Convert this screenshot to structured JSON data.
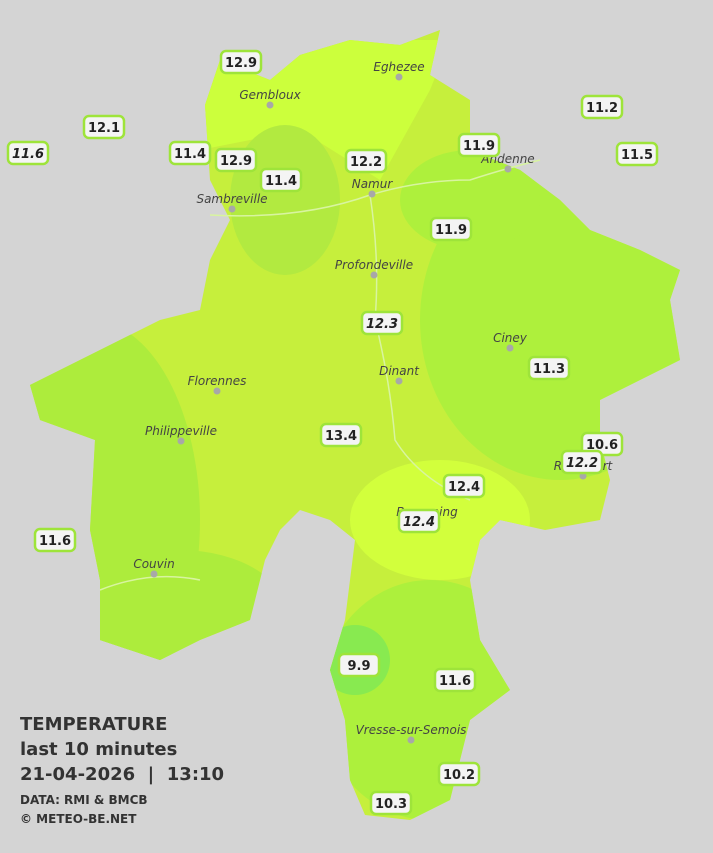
{
  "cities": [
    "Eghezee",
    "Gembloux",
    "Andenne",
    "Namur",
    "Sambreville",
    "Profondeville",
    "Ciney",
    "Dinant",
    "Florennes",
    "Philippeville",
    "Rochefort",
    "Beauraing",
    "Couvin",
    "Vresse-sur-Semois"
  ],
  "stations": [
    "12.9",
    "12.1",
    "11.6",
    "11.4",
    "12.9",
    "11.4",
    "12.2",
    "11.9",
    "11.2",
    "11.5",
    "11.9",
    "12.3",
    "11.3",
    "13.4",
    "10.6",
    "12.2",
    "12.4",
    "12.4",
    "11.6",
    "9.9",
    "11.6",
    "10.2",
    "10.3"
  ],
  "legend": {
    "title": "TEMPERATURE",
    "subtitle": "last 10 minutes",
    "datetime": "21-04-2026  |  13:10",
    "source": "DATA: RMI & BMCB",
    "copyright": "© METEO-BE.NET"
  }
}
